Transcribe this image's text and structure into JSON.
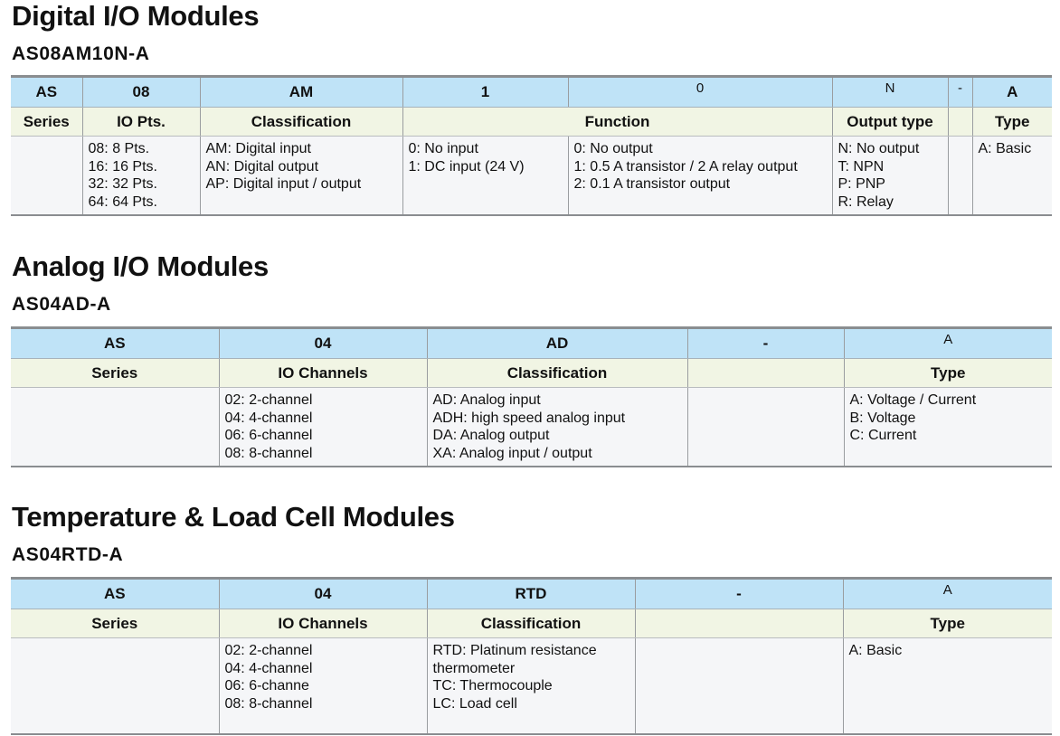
{
  "sections": [
    {
      "title": "Digital I/O Modules",
      "model": "AS08AM10N-A",
      "code_row": [
        {
          "text": "AS"
        },
        {
          "text": "08"
        },
        {
          "text": "AM"
        },
        {
          "text": "1"
        },
        {
          "text": "0",
          "light": true
        },
        {
          "text": "N",
          "light": true
        },
        {
          "text": "-",
          "light": true
        },
        {
          "text": "A"
        }
      ],
      "header_row": [
        {
          "text": "Series"
        },
        {
          "text": "IO Pts."
        },
        {
          "text": "Classification"
        },
        {
          "text": "Function",
          "span": 2
        },
        {
          "text": "Output type"
        },
        {
          "text": ""
        },
        {
          "text": "Type"
        }
      ],
      "body_row": [
        [],
        [
          "08: 8 Pts.",
          "16: 16 Pts.",
          "32: 32 Pts.",
          "64: 64 Pts."
        ],
        [
          "AM: Digital input",
          "AN: Digital output",
          "AP: Digital input / output"
        ],
        [
          "0: No input",
          "1: DC input (24 V)"
        ],
        [
          "0: No output",
          "1: 0.5 A transistor / 2 A relay output",
          "2: 0.1 A transistor output"
        ],
        [
          "N: No output",
          "T: NPN",
          "P: PNP",
          "R: Relay"
        ],
        [],
        [
          "A: Basic"
        ]
      ]
    },
    {
      "title": "Analog I/O Modules",
      "model": "AS04AD-A",
      "code_row": [
        {
          "text": "AS"
        },
        {
          "text": "04"
        },
        {
          "text": "AD"
        },
        {
          "text": "-"
        },
        {
          "text": "A",
          "light": true
        }
      ],
      "header_row": [
        {
          "text": "Series"
        },
        {
          "text": "IO Channels"
        },
        {
          "text": "Classification"
        },
        {
          "text": ""
        },
        {
          "text": "Type"
        }
      ],
      "body_row": [
        [],
        [
          "02: 2-channel",
          "04: 4-channel",
          "06: 6-channel",
          "08: 8-channel"
        ],
        [
          "AD: Analog input",
          "ADH: high speed analog input",
          "DA: Analog output",
          "XA: Analog input / output"
        ],
        [],
        [
          "A: Voltage / Current",
          "B: Voltage",
          "C: Current"
        ]
      ]
    },
    {
      "title": "Temperature & Load Cell Modules",
      "model": "AS04RTD-A",
      "code_row": [
        {
          "text": "AS"
        },
        {
          "text": "04"
        },
        {
          "text": "RTD"
        },
        {
          "text": "-"
        },
        {
          "text": "A",
          "light": true
        }
      ],
      "header_row": [
        {
          "text": "Series"
        },
        {
          "text": "IO Channels"
        },
        {
          "text": "Classification"
        },
        {
          "text": ""
        },
        {
          "text": "Type"
        }
      ],
      "body_row": [
        [],
        [
          "02: 2-channel",
          "04: 4-channel",
          "06: 6-channe",
          "08: 8-channel"
        ],
        [
          "RTD: Platinum resistance",
          "thermometer",
          "TC: Thermocouple",
          "LC: Load cell"
        ],
        [],
        [
          "A: Basic"
        ]
      ]
    }
  ]
}
